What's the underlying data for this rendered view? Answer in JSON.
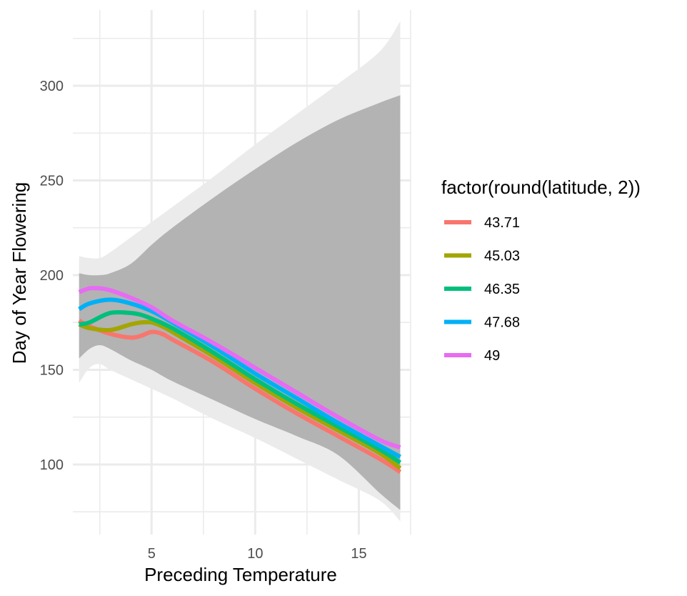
{
  "chart_data": {
    "type": "line",
    "xlabel": "Preceding Temperature",
    "ylabel": "Day of Year Flowering",
    "xlim": [
      1.2,
      17.5
    ],
    "ylim": [
      63,
      340
    ],
    "x_ticks": [
      5,
      10,
      15
    ],
    "y_ticks": [
      100,
      150,
      200,
      250,
      300
    ],
    "x_minor_ticks": [
      2.5,
      7.5,
      12.5,
      17.5
    ],
    "y_minor_ticks": [
      75,
      125,
      175,
      225,
      275,
      325
    ],
    "grid": true,
    "legend": {
      "title": "factor(round(latitude, 2))",
      "placement": "right"
    },
    "bands": [
      {
        "fill": "#ebebeb",
        "x": [
          1.5,
          2,
          2.5,
          3,
          4,
          5,
          6,
          8,
          10,
          12,
          14,
          16,
          17
        ],
        "lower": [
          143,
          151,
          153,
          150,
          145,
          140,
          135,
          124,
          114,
          103,
          92,
          81,
          70
        ],
        "upper": [
          210,
          209,
          209,
          212,
          220,
          228,
          236,
          252,
          269,
          285,
          301,
          318,
          334
        ]
      },
      {
        "fill": "#b3b3b3",
        "x": [
          1.5,
          2,
          2.5,
          3,
          4,
          5,
          6,
          8,
          10,
          12,
          14,
          16,
          17
        ],
        "lower": [
          156,
          161,
          163,
          161,
          155,
          150,
          144,
          134,
          124,
          115,
          105,
          85,
          76
        ],
        "upper": [
          201,
          200,
          200,
          201,
          206,
          216,
          225,
          241,
          256,
          270,
          282,
          291,
          295
        ]
      }
    ],
    "series": [
      {
        "name": "43.71",
        "color": "#F8766D",
        "x": [
          1.5,
          2,
          3,
          4,
          4.5,
          5,
          5.5,
          6,
          8,
          10,
          12,
          14,
          16,
          17
        ],
        "y": [
          176,
          173,
          169,
          167,
          168,
          170,
          169,
          166,
          154,
          140,
          127,
          115,
          103,
          96
        ]
      },
      {
        "name": "45.03",
        "color": "#A3A500",
        "x": [
          1.5,
          2,
          3,
          4,
          4.5,
          5,
          5.5,
          6,
          8,
          10,
          12,
          14,
          16,
          17
        ],
        "y": [
          174,
          172,
          171,
          174,
          175,
          175,
          173,
          170,
          157,
          143,
          130,
          118,
          106,
          98
        ]
      },
      {
        "name": "46.35",
        "color": "#00BF7D",
        "x": [
          1.5,
          2,
          3,
          4,
          4.5,
          5,
          6,
          8,
          10,
          12,
          14,
          16,
          17
        ],
        "y": [
          174,
          175,
          180,
          180,
          179,
          177,
          172,
          159,
          145,
          132,
          120,
          108,
          101
        ]
      },
      {
        "name": "47.68",
        "color": "#00B0F6",
        "x": [
          1.5,
          2,
          3,
          4,
          5,
          6,
          8,
          10,
          12,
          14,
          16,
          17
        ],
        "y": [
          182,
          185,
          187,
          185,
          181,
          175,
          162,
          148,
          135,
          122,
          110,
          104
        ]
      },
      {
        "name": "49",
        "color": "#E76BF3",
        "x": [
          1.5,
          2,
          2.5,
          3,
          4,
          5,
          6,
          8,
          10,
          12,
          14,
          16,
          17
        ],
        "y": [
          191,
          193,
          193,
          192,
          188,
          183,
          176,
          164,
          151,
          138,
          125,
          113,
          109
        ]
      }
    ]
  }
}
